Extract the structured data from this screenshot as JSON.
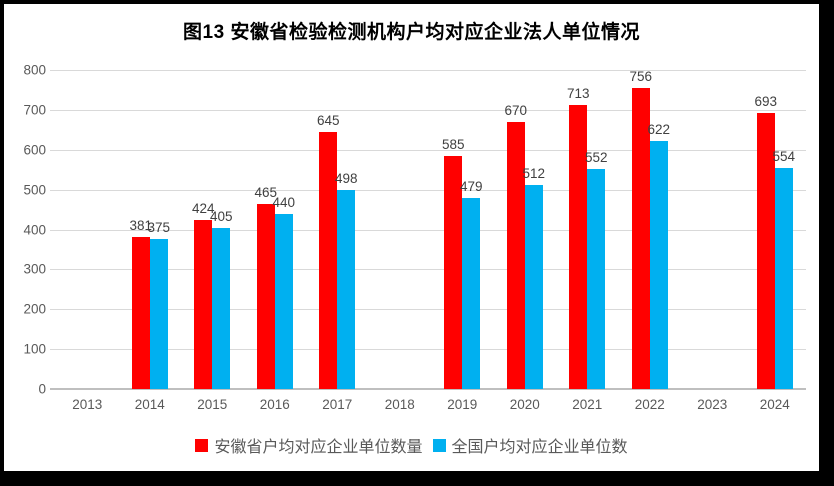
{
  "title": "图13 安徽省检验检测机构户均对应企业法人单位情况",
  "legend": {
    "items": [
      {
        "label": "安徽省户均对应企业单位数量",
        "color": "#ff0000"
      },
      {
        "label": "全国户均对应企业单位数",
        "color": "#00b0f0"
      }
    ]
  },
  "colors": {
    "anhui_series": "#ff0000",
    "national_series": "#00b0f0",
    "gridline": "#d9d9d9",
    "axis_line": "#bfbfbf",
    "axis_text": "#595959",
    "data_label_text": "#404040"
  },
  "chart_data": {
    "type": "bar",
    "title": "图13 安徽省检验检测机构户均对应企业法人单位情况",
    "categories": [
      "2013",
      "2014",
      "2015",
      "2016",
      "2017",
      "2018",
      "2019",
      "2020",
      "2021",
      "2022",
      "2023",
      "2024"
    ],
    "series": [
      {
        "name": "安徽省户均对应企业单位数量",
        "color": "#ff0000",
        "values": [
          null,
          381,
          424,
          465,
          645,
          null,
          585,
          670,
          713,
          756,
          null,
          693
        ]
      },
      {
        "name": "全国户均对应企业单位数",
        "color": "#00b0f0",
        "values": [
          null,
          375,
          405,
          440,
          498,
          null,
          479,
          512,
          552,
          622,
          null,
          554
        ]
      }
    ],
    "xlabel": "",
    "ylabel": "",
    "ylim": [
      0,
      800
    ],
    "yticks": [
      0,
      100,
      200,
      300,
      400,
      500,
      600,
      700,
      800
    ],
    "grid": true,
    "legend_position": "bottom",
    "data_labels": true
  }
}
